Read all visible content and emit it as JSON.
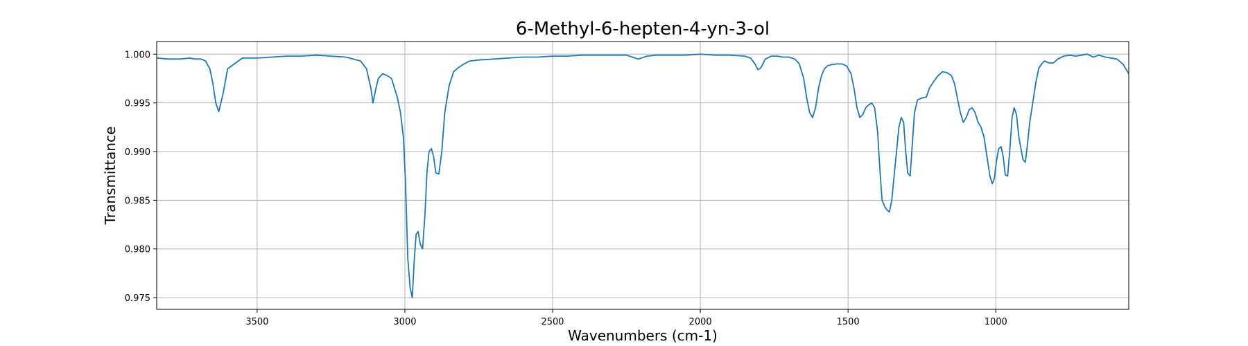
{
  "chart_data": {
    "type": "line",
    "title": "6-Methyl-6-hepten-4-yn-3-ol",
    "xlabel": "Wavenumbers (cm-1)",
    "ylabel": "Transmittance",
    "xlim": [
      3840,
      550
    ],
    "ylim": [
      0.9738,
      1.0013
    ],
    "x_ticks": [
      3500,
      3000,
      2500,
      2000,
      1500,
      1000
    ],
    "x_tick_labels": [
      "3500",
      "3000",
      "2500",
      "2000",
      "1500",
      "1000"
    ],
    "y_ticks": [
      0.975,
      0.98,
      0.985,
      0.99,
      0.995,
      1.0
    ],
    "y_tick_labels": [
      "0.975",
      "0.980",
      "0.985",
      "0.990",
      "0.995",
      "1.000"
    ],
    "grid": true,
    "line_color": "#1f77b4",
    "series": [
      {
        "x": [
          3840,
          3800,
          3760,
          3730,
          3710,
          3690,
          3675,
          3660,
          3650,
          3640,
          3630,
          3615,
          3600,
          3550,
          3500,
          3450,
          3400,
          3350,
          3300,
          3250,
          3200,
          3150,
          3130,
          3115,
          3108,
          3100,
          3090,
          3075,
          3060,
          3045,
          3035,
          3025,
          3015,
          3005,
          2998,
          2990,
          2982,
          2975,
          2968,
          2962,
          2955,
          2948,
          2940,
          2932,
          2925,
          2918,
          2910,
          2903,
          2895,
          2885,
          2875,
          2865,
          2850,
          2835,
          2820,
          2800,
          2780,
          2750,
          2700,
          2650,
          2600,
          2550,
          2500,
          2450,
          2400,
          2350,
          2300,
          2250,
          2230,
          2210,
          2180,
          2150,
          2100,
          2050,
          2000,
          1950,
          1900,
          1850,
          1830,
          1815,
          1805,
          1795,
          1780,
          1760,
          1740,
          1720,
          1700,
          1680,
          1665,
          1650,
          1640,
          1630,
          1620,
          1610,
          1600,
          1590,
          1580,
          1570,
          1560,
          1540,
          1520,
          1505,
          1490,
          1480,
          1470,
          1460,
          1450,
          1440,
          1430,
          1420,
          1410,
          1400,
          1392,
          1385,
          1375,
          1368,
          1360,
          1352,
          1344,
          1336,
          1328,
          1320,
          1312,
          1305,
          1298,
          1290,
          1282,
          1275,
          1265,
          1250,
          1235,
          1225,
          1210,
          1195,
          1180,
          1165,
          1150,
          1140,
          1130,
          1120,
          1110,
          1100,
          1090,
          1080,
          1070,
          1060,
          1050,
          1040,
          1030,
          1020,
          1012,
          1005,
          998,
          990,
          982,
          975,
          968,
          960,
          953,
          945,
          938,
          930,
          922,
          915,
          908,
          900,
          892,
          885,
          875,
          865,
          855,
          845,
          835,
          820,
          805,
          790,
          770,
          750,
          730,
          710,
          690,
          670,
          650,
          630,
          610,
          590,
          570,
          550
        ],
        "y": [
          0.9996,
          0.9995,
          0.9995,
          0.9996,
          0.9995,
          0.9995,
          0.9993,
          0.9985,
          0.997,
          0.995,
          0.9941,
          0.996,
          0.9985,
          0.9996,
          0.9996,
          0.9997,
          0.9998,
          0.9998,
          0.9999,
          0.9998,
          0.9997,
          0.9993,
          0.9985,
          0.9965,
          0.995,
          0.9962,
          0.9975,
          0.998,
          0.9978,
          0.9975,
          0.9965,
          0.9955,
          0.994,
          0.9915,
          0.987,
          0.979,
          0.976,
          0.975,
          0.979,
          0.9815,
          0.9818,
          0.9805,
          0.98,
          0.9835,
          0.988,
          0.99,
          0.9903,
          0.9895,
          0.9878,
          0.9877,
          0.99,
          0.994,
          0.9968,
          0.9982,
          0.9986,
          0.999,
          0.9993,
          0.9994,
          0.9995,
          0.9996,
          0.9997,
          0.9997,
          0.9998,
          0.9998,
          0.9999,
          0.9999,
          0.9999,
          0.9999,
          0.9997,
          0.9995,
          0.9998,
          0.9999,
          0.9999,
          0.9999,
          1.0,
          0.9999,
          0.9999,
          0.9998,
          0.9996,
          0.999,
          0.9984,
          0.9986,
          0.9995,
          0.9998,
          0.9998,
          0.9997,
          0.9997,
          0.9995,
          0.999,
          0.9975,
          0.9955,
          0.994,
          0.9935,
          0.9945,
          0.9965,
          0.9978,
          0.9985,
          0.9988,
          0.9989,
          0.999,
          0.999,
          0.9988,
          0.998,
          0.9965,
          0.9945,
          0.9935,
          0.9938,
          0.9945,
          0.9948,
          0.995,
          0.9945,
          0.992,
          0.988,
          0.985,
          0.9843,
          0.984,
          0.9838,
          0.985,
          0.9875,
          0.99,
          0.9925,
          0.9935,
          0.993,
          0.99,
          0.9878,
          0.9875,
          0.991,
          0.994,
          0.9953,
          0.9955,
          0.9956,
          0.9965,
          0.9972,
          0.9978,
          0.9982,
          0.9981,
          0.9978,
          0.997,
          0.9955,
          0.994,
          0.993,
          0.9935,
          0.9943,
          0.9945,
          0.994,
          0.993,
          0.9925,
          0.9915,
          0.9895,
          0.9875,
          0.9867,
          0.9872,
          0.989,
          0.9903,
          0.9905,
          0.9895,
          0.9876,
          0.9875,
          0.99,
          0.9935,
          0.9945,
          0.9938,
          0.9915,
          0.9903,
          0.9892,
          0.9889,
          0.991,
          0.993,
          0.995,
          0.997,
          0.9985,
          0.999,
          0.9993,
          0.9991,
          0.9991,
          0.9995,
          0.9998,
          0.9999,
          0.9998,
          0.9999,
          1.0,
          0.9997,
          0.9999,
          0.9997,
          0.9996,
          0.9995,
          0.999,
          0.998
        ]
      }
    ]
  }
}
